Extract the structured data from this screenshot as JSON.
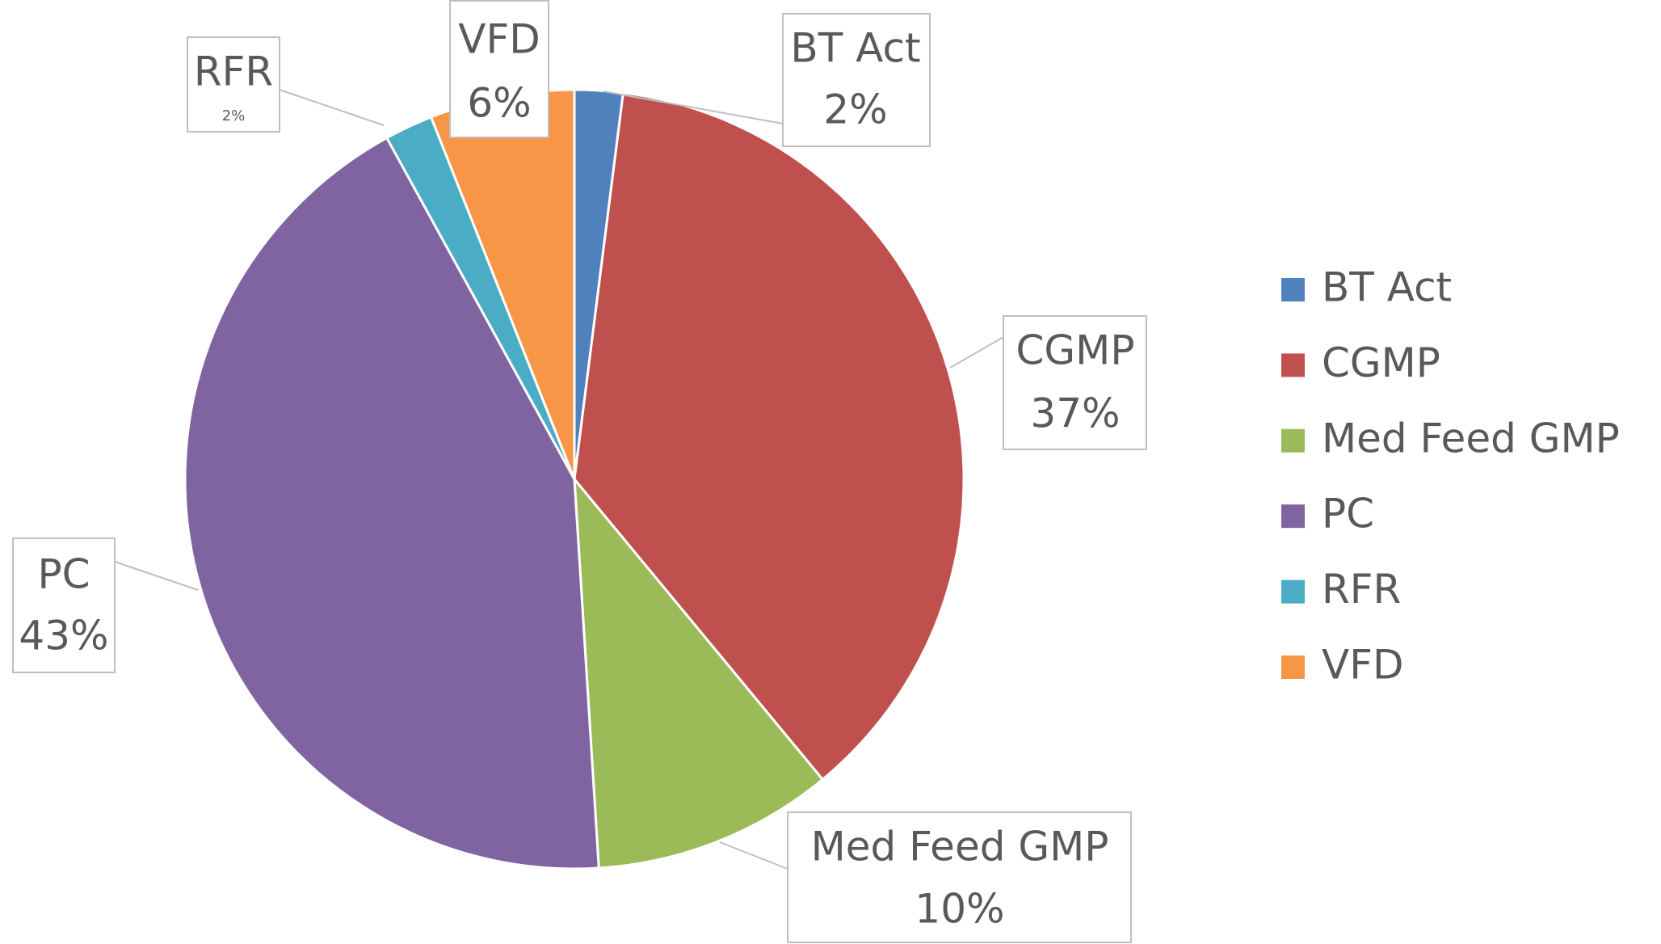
{
  "chart_data": {
    "type": "pie",
    "categories": [
      "BT Act",
      "CGMP",
      "Med Feed GMP",
      "PC",
      "RFR",
      "VFD"
    ],
    "values": [
      2,
      37,
      10,
      43,
      2,
      6
    ],
    "value_labels": [
      "2%",
      "37%",
      "10%",
      "43%",
      "2%",
      "6%"
    ],
    "colors": [
      "#4f81bd",
      "#c0504d",
      "#9bbb59",
      "#8064a2",
      "#4bacc6",
      "#f79646"
    ],
    "legend": "right"
  }
}
